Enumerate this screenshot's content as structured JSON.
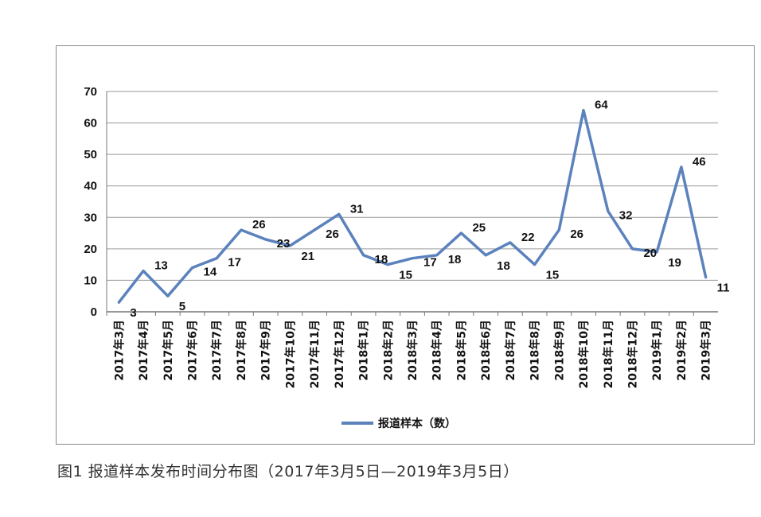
{
  "chart_data": {
    "type": "line",
    "title": "",
    "xlabel": "",
    "ylabel": "",
    "ylim": [
      0,
      70
    ],
    "yticks": [
      "0",
      "10",
      "20",
      "30",
      "40",
      "50",
      "60",
      "70"
    ],
    "grid": true,
    "legend_position": "bottom",
    "categories": [
      "2017年3月",
      "2017年4月",
      "2017年5月",
      "2017年6月",
      "2017年7月",
      "2017年8月",
      "2017年9月",
      "2017年10月",
      "2017年11月",
      "2017年12月",
      "2018年1月",
      "2018年2月",
      "2018年3月",
      "2018年4月",
      "2018年5月",
      "2018年6月",
      "2018年7月",
      "2018年8月",
      "2018年9月",
      "2018年10月",
      "2018年11月",
      "2018年12月",
      "2019年1月",
      "2019年2月",
      "2019年3月"
    ],
    "series": [
      {
        "name": "报道样本（数）",
        "color": "#5b82bd",
        "values": [
          3,
          13,
          5,
          14,
          17,
          26,
          23,
          21,
          26,
          31,
          18,
          15,
          17,
          18,
          25,
          18,
          22,
          15,
          26,
          64,
          32,
          20,
          19,
          46,
          11
        ]
      }
    ]
  },
  "caption": "图1  报道样本发布时间分布图（2017年3月5日—2019年3月5日）"
}
